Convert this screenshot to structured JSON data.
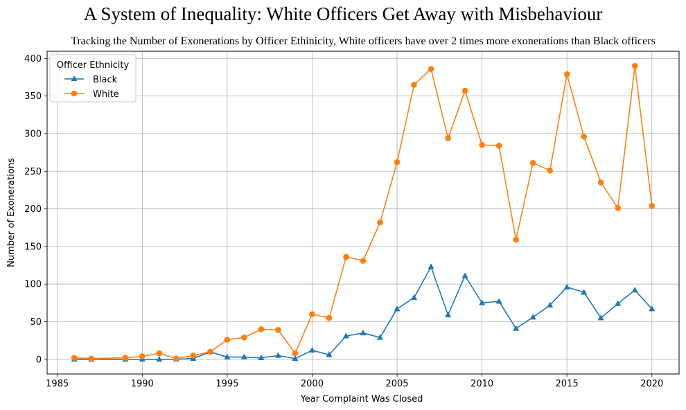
{
  "figure_title": "A System of Inequality: White Officers Get Away with Misbehaviour",
  "chart_data": {
    "type": "line",
    "title": "Tracking the Number of Exonerations by Officer Ethinicity, White officers have over 2 times more exonerations than Black officers",
    "xlabel": "Year Complaint Was Closed",
    "ylabel": "Number of Exonerations",
    "xlim": [
      1984.4,
      2021.6
    ],
    "ylim": [
      -19.5,
      409.5
    ],
    "xticks": [
      1985,
      1990,
      1995,
      2000,
      2005,
      2010,
      2015,
      2020
    ],
    "yticks": [
      0,
      50,
      100,
      150,
      200,
      250,
      300,
      350,
      400
    ],
    "grid": true,
    "legend": {
      "title": "Officer Ethnicity",
      "position": "upper left"
    },
    "series": [
      {
        "name": "Black",
        "color": "#1f77b4",
        "marker": "triangle",
        "x": [
          1986,
          1987,
          1989,
          1990,
          1991,
          1992,
          1993,
          1994,
          1995,
          1996,
          1997,
          1998,
          1999,
          2000,
          2001,
          2002,
          2003,
          2004,
          2005,
          2006,
          2007,
          2008,
          2009,
          2010,
          2011,
          2012,
          2013,
          2014,
          2015,
          2016,
          2017,
          2018,
          2019,
          2020
        ],
        "y": [
          0,
          0,
          0,
          0,
          0,
          0,
          1,
          10,
          3,
          3,
          2,
          5,
          1,
          12,
          6,
          31,
          35,
          29,
          67,
          82,
          123,
          59,
          111,
          75,
          77,
          41,
          56,
          72,
          96,
          89,
          55,
          74,
          92,
          67
        ]
      },
      {
        "name": "White",
        "color": "#ff7f0e",
        "marker": "circle",
        "x": [
          1986,
          1987,
          1989,
          1990,
          1991,
          1992,
          1993,
          1994,
          1995,
          1996,
          1997,
          1998,
          1999,
          2000,
          2001,
          2002,
          2003,
          2004,
          2005,
          2006,
          2007,
          2008,
          2009,
          2010,
          2011,
          2012,
          2013,
          2014,
          2015,
          2016,
          2017,
          2018,
          2019,
          2020
        ],
        "y": [
          2,
          1,
          2,
          4,
          8,
          1,
          5,
          10,
          26,
          29,
          40,
          39,
          8,
          60,
          55,
          136,
          131,
          182,
          262,
          365,
          386,
          294,
          357,
          285,
          284,
          159,
          261,
          251,
          379,
          296,
          235,
          201,
          390,
          204
        ]
      }
    ]
  }
}
